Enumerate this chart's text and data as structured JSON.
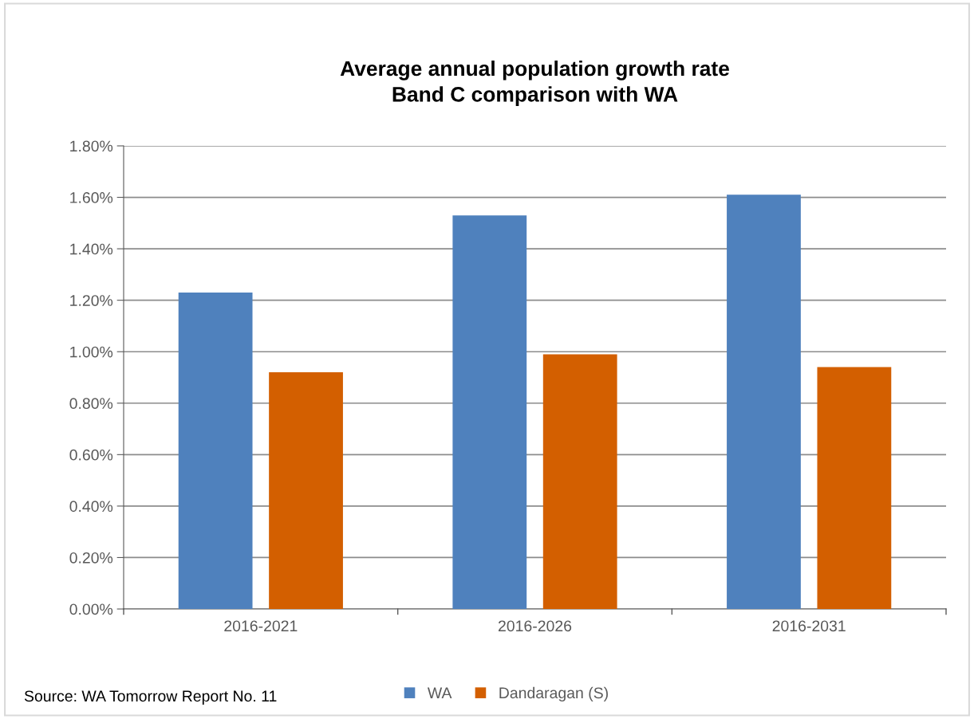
{
  "chart_data": {
    "type": "bar",
    "title": "Average annual population growth rate\nBand C comparison with WA",
    "categories": [
      "2016-2021",
      "2016-2026",
      "2016-2031"
    ],
    "series": [
      {
        "name": "WA",
        "color": "#4f81bd",
        "values": [
          1.23,
          1.53,
          1.61
        ]
      },
      {
        "name": "Dandaragan (S)",
        "color": "#d35f00",
        "values": [
          0.92,
          0.99,
          0.94
        ]
      }
    ],
    "ylim": [
      0,
      1.8
    ],
    "yticks": [
      {
        "value": 0,
        "label": "0.00%"
      },
      {
        "value": 0.2,
        "label": "0.20%"
      },
      {
        "value": 0.4,
        "label": "0.40%"
      },
      {
        "value": 0.6,
        "label": "0.60%"
      },
      {
        "value": 0.8,
        "label": "0.80%"
      },
      {
        "value": 1.0,
        "label": "1.00%"
      },
      {
        "value": 1.2,
        "label": "1.20%"
      },
      {
        "value": 1.4,
        "label": "1.40%"
      },
      {
        "value": 1.6,
        "label": "1.60%"
      },
      {
        "value": 1.8,
        "label": "1.80%"
      }
    ],
    "grid": "y",
    "legend": "bottom",
    "annotations": [
      "Source: WA Tomorrow Report No. 11"
    ]
  }
}
